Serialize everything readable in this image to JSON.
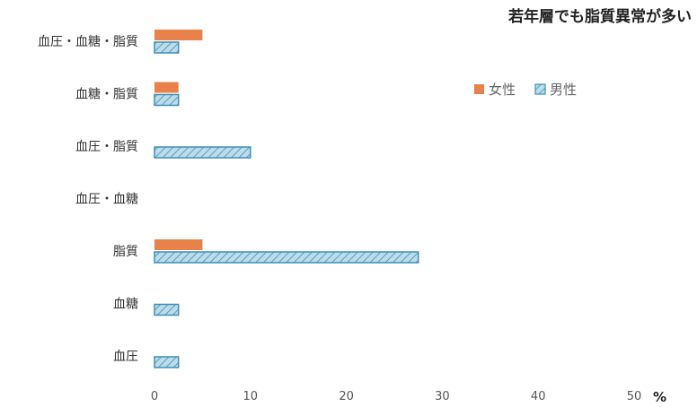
{
  "chart_data": {
    "type": "bar",
    "orientation": "horizontal",
    "title": "若年層でも脂質異常が多い",
    "unit": "%",
    "categories": [
      "血圧・血糖・脂質",
      "血糖・脂質",
      "血圧・脂質",
      "血圧・血糖",
      "脂質",
      "血糖",
      "血圧"
    ],
    "series": [
      {
        "name": "女性",
        "color": "#e8824a",
        "values": [
          5,
          2.5,
          0,
          0,
          5,
          0,
          0
        ]
      },
      {
        "name": "男性",
        "color": "#3d8fb5",
        "fill": "#bcdcea",
        "values": [
          2.5,
          2.5,
          10,
          0,
          27.5,
          2.5,
          2.5
        ]
      }
    ],
    "xlim": [
      0,
      50
    ],
    "xticks": [
      0,
      10,
      20,
      30,
      40,
      50
    ],
    "legend_position": "right",
    "grid": false
  }
}
